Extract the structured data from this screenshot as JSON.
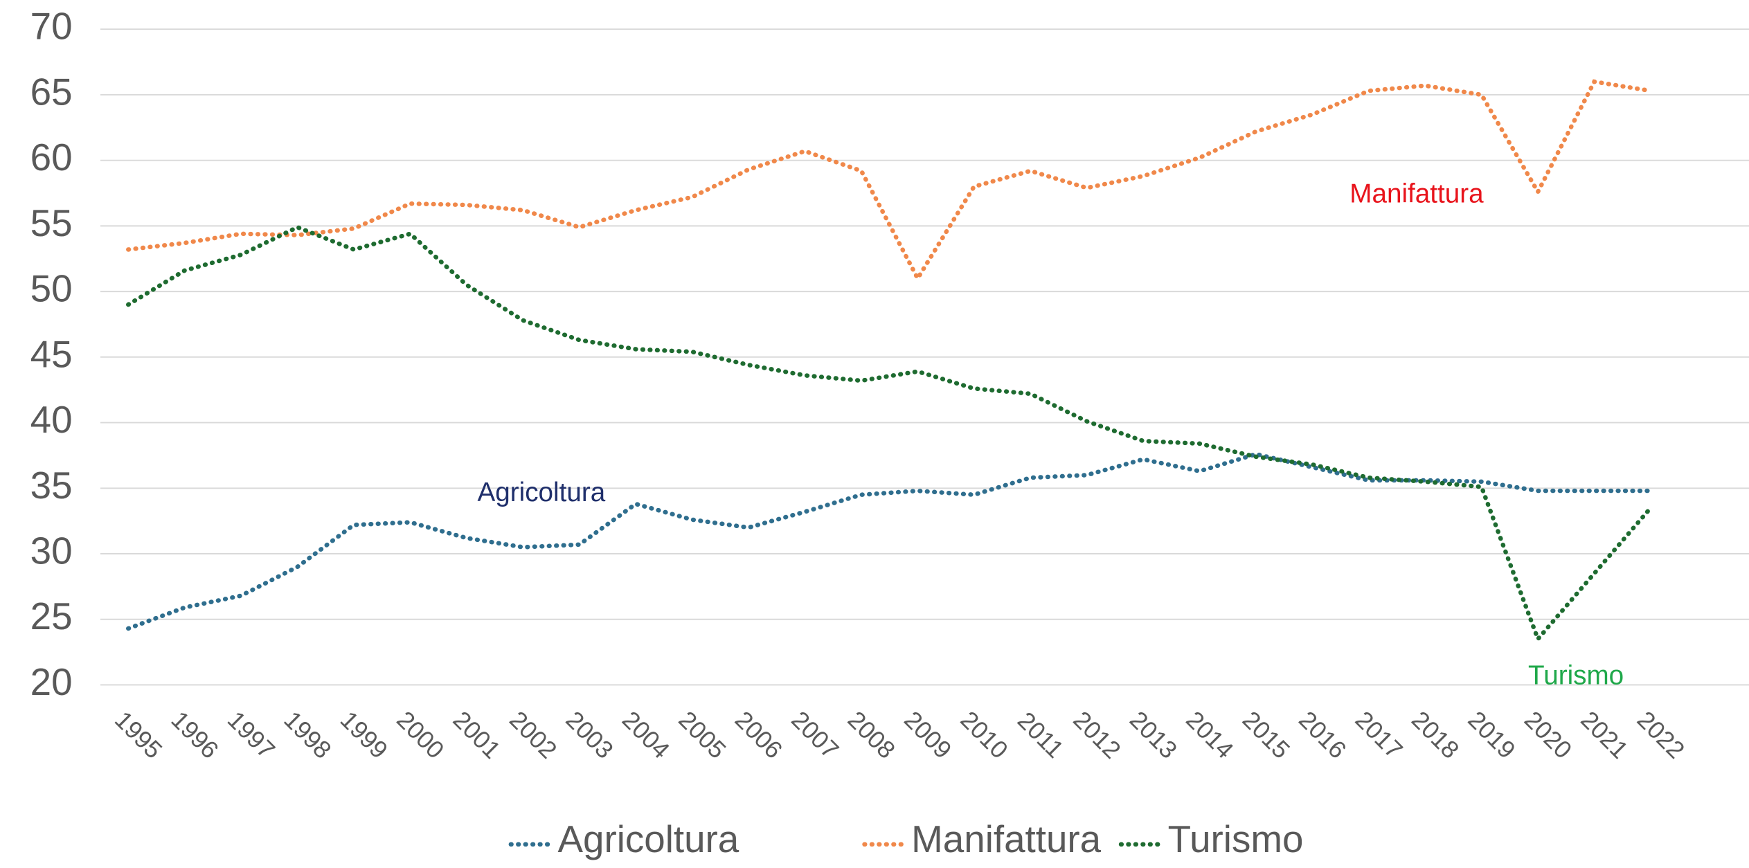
{
  "chart_data": {
    "type": "line",
    "categories": [
      "1995",
      "1996",
      "1997",
      "1998",
      "1999",
      "2000",
      "2001",
      "2002",
      "2003",
      "2004",
      "2005",
      "2006",
      "2007",
      "2008",
      "2009",
      "2010",
      "2011",
      "2012",
      "2013",
      "2014",
      "2015",
      "2016",
      "2017",
      "2018",
      "2019",
      "2020",
      "2021",
      "2022"
    ],
    "series": [
      {
        "name": "Agricoltura",
        "color": "#2f6e8e",
        "values": [
          24.3,
          25.9,
          26.8,
          29,
          32.2,
          32.4,
          31.2,
          30.5,
          30.7,
          33.8,
          32.6,
          32,
          33.2,
          34.5,
          34.8,
          34.5,
          35.8,
          36,
          37.2,
          36.3,
          37.6,
          36.6,
          35.6,
          35.6,
          35.5,
          34.8,
          34.8,
          34.8
        ]
      },
      {
        "name": "Manifattura",
        "color": "#f0884a",
        "values": [
          53.2,
          53.7,
          54.4,
          54.3,
          54.8,
          56.7,
          56.6,
          56.2,
          54.9,
          56.2,
          57.2,
          59.3,
          60.7,
          59.2,
          51,
          58,
          59.2,
          57.9,
          58.8,
          60.2,
          62.2,
          63.5,
          65.3,
          65.7,
          65,
          57.6,
          66,
          65.3
        ]
      },
      {
        "name": "Turismo",
        "color": "#1e6b30",
        "values": [
          49,
          51.6,
          52.8,
          54.9,
          53.2,
          54.4,
          50.5,
          47.8,
          46.3,
          45.6,
          45.4,
          44.4,
          43.6,
          43.2,
          43.9,
          42.6,
          42.2,
          40.1,
          38.6,
          38.4,
          37.4,
          36.8,
          35.8,
          35.5,
          35.1,
          23.5,
          28.5,
          33.5
        ]
      }
    ],
    "annotations": [
      {
        "text": "Agricoltura",
        "color": "#1f2f6b"
      },
      {
        "text": "Manifattura",
        "color": "#e8131b"
      },
      {
        "text": "Turismo",
        "color": "#1fa84a"
      }
    ],
    "ylim": [
      20,
      70
    ],
    "yticks": [
      20,
      25,
      30,
      35,
      40,
      45,
      50,
      55,
      60,
      65,
      70
    ],
    "grid": true,
    "legend": "bottom"
  }
}
